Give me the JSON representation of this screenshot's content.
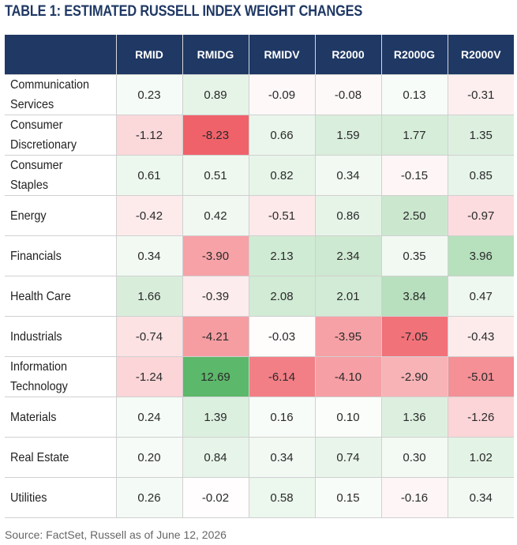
{
  "title": "TABLE 1: ESTIMATED RUSSELL INDEX WEIGHT CHANGES",
  "source": "Source: FactSet, Russell as of June 12, 2026",
  "colors": {
    "header_bg": "#1f3864",
    "positive": "#5cb86a",
    "negative": "#f0626a",
    "neutral": "#ffffff"
  },
  "chart_data": {
    "type": "heatmap",
    "title": "TABLE 1: ESTIMATED RUSSELL INDEX WEIGHT CHANGES",
    "columns": [
      "RMID",
      "RMIDG",
      "RMIDV",
      "R2000",
      "R2000G",
      "R2000V"
    ],
    "rows": [
      {
        "sector": [
          "Communication",
          "Services"
        ],
        "values": [
          "0.23",
          "0.89",
          "-0.09",
          "-0.08",
          "0.13",
          "-0.31"
        ]
      },
      {
        "sector": [
          "Consumer",
          "Discretionary"
        ],
        "values": [
          "-1.12",
          "-8.23",
          "0.66",
          "1.59",
          "1.77",
          "1.35"
        ]
      },
      {
        "sector": [
          "Consumer",
          "Staples"
        ],
        "values": [
          "0.61",
          "0.51",
          "0.82",
          "0.34",
          "-0.15",
          "0.85"
        ]
      },
      {
        "sector": [
          "Energy"
        ],
        "values": [
          "-0.42",
          "0.42",
          "-0.51",
          "0.86",
          "2.50",
          "-0.97"
        ]
      },
      {
        "sector": [
          "Financials"
        ],
        "values": [
          "0.34",
          "-3.90",
          "2.13",
          "2.34",
          "0.35",
          "3.96"
        ]
      },
      {
        "sector": [
          "Health Care"
        ],
        "values": [
          "1.66",
          "-0.39",
          "2.08",
          "2.01",
          "3.84",
          "0.47"
        ]
      },
      {
        "sector": [
          "Industrials"
        ],
        "values": [
          "-0.74",
          "-4.21",
          "-0.03",
          "-3.95",
          "-7.05",
          "-0.43"
        ]
      },
      {
        "sector": [
          "Information",
          "Technology"
        ],
        "values": [
          "-1.24",
          "12.69",
          "-6.14",
          "-4.10",
          "-2.90",
          "-5.01"
        ]
      },
      {
        "sector": [
          "Materials"
        ],
        "values": [
          "0.24",
          "1.39",
          "0.16",
          "0.10",
          "1.36",
          "-1.26"
        ]
      },
      {
        "sector": [
          "Real Estate"
        ],
        "values": [
          "0.20",
          "0.84",
          "0.34",
          "0.74",
          "0.30",
          "1.02"
        ]
      },
      {
        "sector": [
          "Utilities"
        ],
        "values": [
          "0.26",
          "-0.02",
          "0.58",
          "0.15",
          "-0.16",
          "0.34"
        ]
      }
    ]
  }
}
